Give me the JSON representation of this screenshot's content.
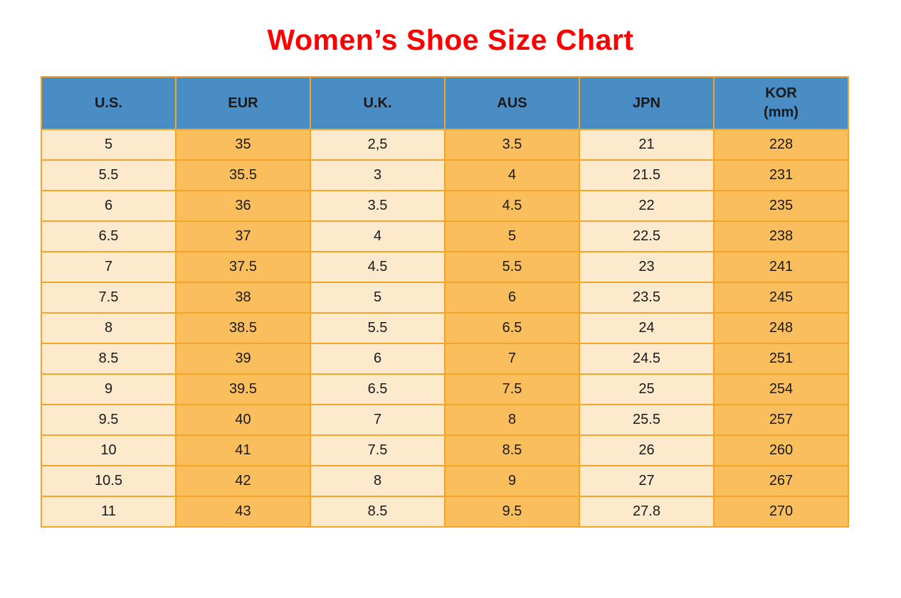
{
  "title": "Women’s Shoe Size Chart",
  "colors": {
    "title_red": "#FF0000",
    "header_blue": "#4A8CC4",
    "cell_orange": "#FBBE5C",
    "cell_cream": "#FDEACD",
    "border_orange": "#F5A428",
    "text_dark": "#1A1A1A",
    "background": "#FFFFFF"
  },
  "table": {
    "columns": [
      {
        "label": "U.S.",
        "sublabel": ""
      },
      {
        "label": "EUR",
        "sublabel": ""
      },
      {
        "label": "U.K.",
        "sublabel": ""
      },
      {
        "label": "AUS",
        "sublabel": ""
      },
      {
        "label": "JPN",
        "sublabel": ""
      },
      {
        "label": "KOR",
        "sublabel": "(mm)"
      }
    ]
  },
  "chart_data": {
    "type": "table",
    "title": "Women’s Shoe Size Chart",
    "columns": [
      "U.S.",
      "EUR",
      "U.K.",
      "AUS",
      "JPN",
      "KOR (mm)"
    ],
    "rows": [
      [
        "5",
        "35",
        "2,5",
        "3.5",
        "21",
        "228"
      ],
      [
        "5.5",
        "35.5",
        "3",
        "4",
        "21.5",
        "231"
      ],
      [
        "6",
        "36",
        "3.5",
        "4.5",
        "22",
        "235"
      ],
      [
        "6.5",
        "37",
        "4",
        "5",
        "22.5",
        "238"
      ],
      [
        "7",
        "37.5",
        "4.5",
        "5.5",
        "23",
        "241"
      ],
      [
        "7.5",
        "38",
        "5",
        "6",
        "23.5",
        "245"
      ],
      [
        "8",
        "38.5",
        "5.5",
        "6.5",
        "24",
        "248"
      ],
      [
        "8.5",
        "39",
        "6",
        "7",
        "24.5",
        "251"
      ],
      [
        "9",
        "39.5",
        "6.5",
        "7.5",
        "25",
        "254"
      ],
      [
        "9.5",
        "40",
        "7",
        "8",
        "25.5",
        "257"
      ],
      [
        "10",
        "41",
        "7.5",
        "8.5",
        "26",
        "260"
      ],
      [
        "10.5",
        "42",
        "8",
        "9",
        "27",
        "267"
      ],
      [
        "11",
        "43",
        "8.5",
        "9.5",
        "27.8",
        "270"
      ]
    ]
  }
}
